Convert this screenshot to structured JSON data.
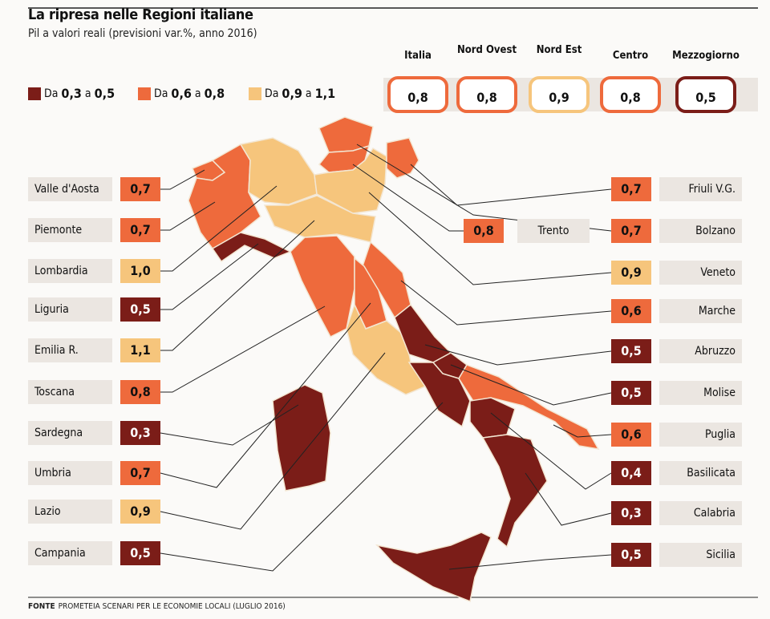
{
  "header": {
    "title": "La ripresa nelle Regioni italiane",
    "subtitle": "Pil a valori reali (previsioni var.%, anno 2016)"
  },
  "legend": {
    "prefix": "Da",
    "joiner": "a",
    "items": [
      {
        "from": "0,3",
        "to": "0,5",
        "color": "#7b1d18"
      },
      {
        "from": "0,6",
        "to": "0,8",
        "color": "#ee6a3c"
      },
      {
        "from": "0,9",
        "to": "1,1",
        "color": "#f6c57c"
      }
    ]
  },
  "macro_areas": [
    {
      "name": "Italia",
      "value": "0,8",
      "color": "#ee6a3c"
    },
    {
      "name": "Nord Ovest",
      "value": "0,8",
      "color": "#ee6a3c"
    },
    {
      "name": "Nord Est",
      "value": "0,9",
      "color": "#f6c57c"
    },
    {
      "name": "Centro",
      "value": "0,8",
      "color": "#ee6a3c"
    },
    {
      "name": "Mezzogiorno",
      "value": "0,5",
      "color": "#7b1d18"
    }
  ],
  "regions_left": [
    {
      "name": "Valle d'Aosta",
      "value": "0,7",
      "color": "#ee6a3c"
    },
    {
      "name": "Piemonte",
      "value": "0,7",
      "color": "#ee6a3c"
    },
    {
      "name": "Lombardia",
      "value": "1,0",
      "color": "#f6c57c"
    },
    {
      "name": "Liguria",
      "value": "0,5",
      "color": "#7b1d18"
    },
    {
      "name": "Emilia R.",
      "value": "1,1",
      "color": "#f6c57c"
    },
    {
      "name": "Toscana",
      "value": "0,8",
      "color": "#ee6a3c"
    },
    {
      "name": "Sardegna",
      "value": "0,3",
      "color": "#7b1d18"
    },
    {
      "name": "Umbria",
      "value": "0,7",
      "color": "#ee6a3c"
    },
    {
      "name": "Lazio",
      "value": "0,9",
      "color": "#f6c57c"
    },
    {
      "name": "Campania",
      "value": "0,5",
      "color": "#7b1d18"
    }
  ],
  "regions_right": [
    {
      "name": "Friuli V.G.",
      "value": "0,7",
      "color": "#ee6a3c"
    },
    {
      "name": "Bolzano",
      "value": "0,7",
      "color": "#ee6a3c"
    },
    {
      "name": "Veneto",
      "value": "0,9",
      "color": "#f6c57c"
    },
    {
      "name": "Marche",
      "value": "0,6",
      "color": "#ee6a3c"
    },
    {
      "name": "Abruzzo",
      "value": "0,5",
      "color": "#7b1d18"
    },
    {
      "name": "Molise",
      "value": "0,5",
      "color": "#7b1d18"
    },
    {
      "name": "Puglia",
      "value": "0,6",
      "color": "#ee6a3c"
    },
    {
      "name": "Basilicata",
      "value": "0,4",
      "color": "#7b1d18"
    },
    {
      "name": "Calabria",
      "value": "0,3",
      "color": "#7b1d18"
    },
    {
      "name": "Sicilia",
      "value": "0,5",
      "color": "#7b1d18"
    }
  ],
  "trento": {
    "name": "Trento",
    "value": "0,8",
    "color": "#ee6a3c"
  },
  "source": {
    "label": "FONTE",
    "text": "PROMETEIA SCENARI PER LE ECONOMIE LOCALI (LUGLIO 2016)"
  }
}
